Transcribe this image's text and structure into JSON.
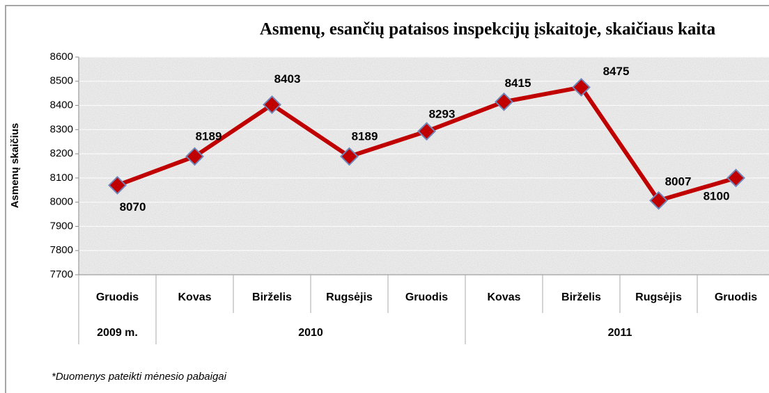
{
  "chart_data": {
    "type": "line",
    "title": "Asmenų, esančių pataisos inspekcijų įskaitoje, skaičiaus kaita",
    "y_label": "Asmenų skaičius",
    "categories": [
      "Gruodis",
      "Kovas",
      "Birželis",
      "Rugsėjis",
      "Gruodis",
      "Kovas",
      "Birželis",
      "Rugsėjis",
      "Gruodis"
    ],
    "category_groups": [
      "2009 m.",
      "2010",
      "2011"
    ],
    "series": [
      {
        "name": "Asmenų skaičius",
        "color": "#c00000",
        "marker_color": "#c00000",
        "values": [
          8070,
          8189,
          8403,
          8189,
          8293,
          8415,
          8475,
          8007,
          8100
        ]
      }
    ],
    "ylim": [
      7700,
      8600
    ],
    "yticks": [
      7700,
      7800,
      7900,
      8000,
      8100,
      8200,
      8300,
      8400,
      8500,
      8600
    ],
    "grid": true,
    "footnote": "*Duomenys pateikti mėnesio pabaigai"
  }
}
